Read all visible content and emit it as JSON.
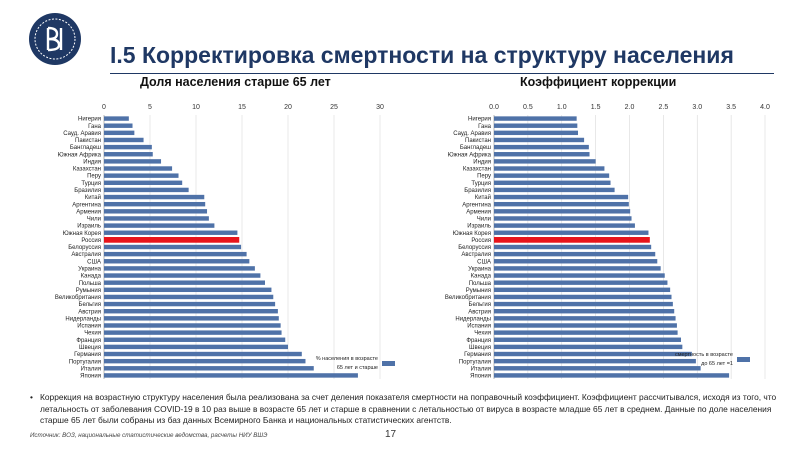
{
  "header": {
    "title": "I.5 Корректировка смертности на структуру населения",
    "page_number": "17"
  },
  "colors": {
    "bar": "#4f72a8",
    "highlight": "#e8141b",
    "title": "#1f3864",
    "grid": "#d9d9d9"
  },
  "chart_data": [
    {
      "type": "bar",
      "orientation": "horizontal",
      "title": "Доля населения старше 65 лет",
      "xlim": [
        0,
        30
      ],
      "ticks": [
        0,
        5,
        10,
        15,
        20,
        25,
        30
      ],
      "highlight": "Россия",
      "legend": [
        "% населения в возрасте",
        "65 лет и старше"
      ],
      "categories": [
        "Нигерия",
        "Гана",
        "Сауд. Аравия",
        "Пакистан",
        "Бангладеш",
        "Южная Африка",
        "Индия",
        "Казахстан",
        "Перу",
        "Турция",
        "Бразилия",
        "Китай",
        "Аргентина",
        "Армения",
        "Чили",
        "Израиль",
        "Южная Корея",
        "Россия",
        "Белоруссия",
        "Австралия",
        "США",
        "Украина",
        "Канада",
        "Польша",
        "Румыния",
        "Великобритания",
        "Бельгия",
        "Австрия",
        "Нидерланды",
        "Испания",
        "Чехия",
        "Франция",
        "Швеция",
        "Германия",
        "Португалия",
        "Италия",
        "Япония"
      ],
      "values": [
        2.7,
        3.1,
        3.3,
        4.3,
        5.2,
        5.3,
        6.2,
        7.4,
        8.1,
        8.5,
        9.2,
        10.9,
        11.0,
        11.2,
        11.4,
        12.0,
        14.5,
        14.7,
        14.9,
        15.5,
        15.8,
        16.4,
        17.0,
        17.5,
        18.2,
        18.4,
        18.6,
        18.9,
        19.0,
        19.2,
        19.3,
        19.7,
        20.0,
        21.5,
        21.9,
        22.8,
        27.6
      ]
    },
    {
      "type": "bar",
      "orientation": "horizontal",
      "title": "Коэффициент коррекции",
      "xlim": [
        0,
        4
      ],
      "ticks": [
        "0.0",
        "0.5",
        "1.0",
        "1.5",
        "2.0",
        "2.5",
        "3.0",
        "3.5",
        "4.0"
      ],
      "highlight": "Россия",
      "legend": [
        "смертность в возрасте",
        "до 65 лет =1"
      ],
      "categories": [
        "Нигерия",
        "Гана",
        "Сауд. Аравия",
        "Пакистан",
        "Бангладеш",
        "Южная Африка",
        "Индия",
        "Казахстан",
        "Перу",
        "Турция",
        "Бразилия",
        "Китай",
        "Аргентина",
        "Армения",
        "Чили",
        "Израиль",
        "Южная Корея",
        "Россия",
        "Белоруссия",
        "Австралия",
        "США",
        "Украина",
        "Канада",
        "Польша",
        "Румыния",
        "Великобритания",
        "Бельгия",
        "Австрия",
        "Нидерланды",
        "Испания",
        "Чехия",
        "Франция",
        "Швеция",
        "Германия",
        "Португалия",
        "Италия",
        "Япония"
      ],
      "values": [
        1.22,
        1.23,
        1.24,
        1.33,
        1.4,
        1.41,
        1.5,
        1.63,
        1.7,
        1.72,
        1.78,
        1.98,
        1.99,
        2.01,
        2.03,
        2.08,
        2.28,
        2.3,
        2.32,
        2.38,
        2.41,
        2.46,
        2.52,
        2.56,
        2.6,
        2.62,
        2.64,
        2.66,
        2.68,
        2.7,
        2.71,
        2.76,
        2.78,
        2.92,
        2.98,
        3.05,
        3.47
      ]
    }
  ],
  "note": {
    "bullet": "•",
    "text": "Коррекция на возрастную структуру населения была реализована за счет деления показателя смертности на поправочный коэффициент. Коэффициент рассчитывался, исходя из того, что летальность от заболевания COVID-19 в 10 раз выше в возрасте 65 лет и старше в сравнении с летальностью от вируса в возрасте младше 65 лет в среднем. Данные по доле населения старше 65 лет были собраны из баз данных Всемирного Банка и национальных статистических агентств."
  },
  "source": "Источник: ВОЗ, национальные статистические ведомства, расчеты НИУ ВШЭ"
}
